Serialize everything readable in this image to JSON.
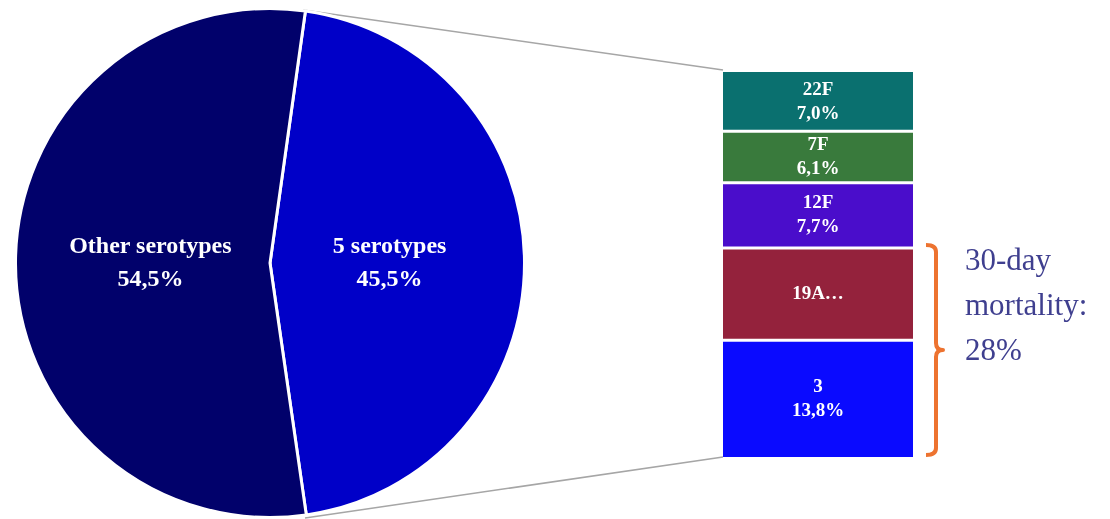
{
  "chart_data": [
    {
      "type": "pie",
      "categories": [
        "5 serotypes",
        "Other serotypes"
      ],
      "values": [
        45.5,
        54.5
      ],
      "colors": [
        "#0000c8",
        "#01016b"
      ],
      "value_labels": [
        "45,5%",
        "54,5%"
      ],
      "legend": false
    },
    {
      "type": "bar",
      "stacked": true,
      "categories": [
        null
      ],
      "legend": false,
      "series": [
        {
          "name": "3",
          "color": "#0a0aff",
          "values": [
            13.8
          ],
          "value_labels": [
            "13,8%"
          ]
        },
        {
          "name": "19A…",
          "color": "#94223c",
          "values": [
            10.9
          ],
          "value_labels": [
            null
          ]
        },
        {
          "name": "12F",
          "color": "#4a0dcb",
          "values": [
            7.7
          ],
          "value_labels": [
            "7,7%"
          ]
        },
        {
          "name": "7F",
          "color": "#397a3c",
          "values": [
            6.1
          ],
          "value_labels": [
            "6,1%"
          ]
        },
        {
          "name": "22F",
          "color": "#0a706f",
          "values": [
            7.0
          ],
          "value_labels": [
            "7,0%"
          ]
        }
      ],
      "annotations": [
        "30-day mortality: 28%"
      ]
    }
  ]
}
